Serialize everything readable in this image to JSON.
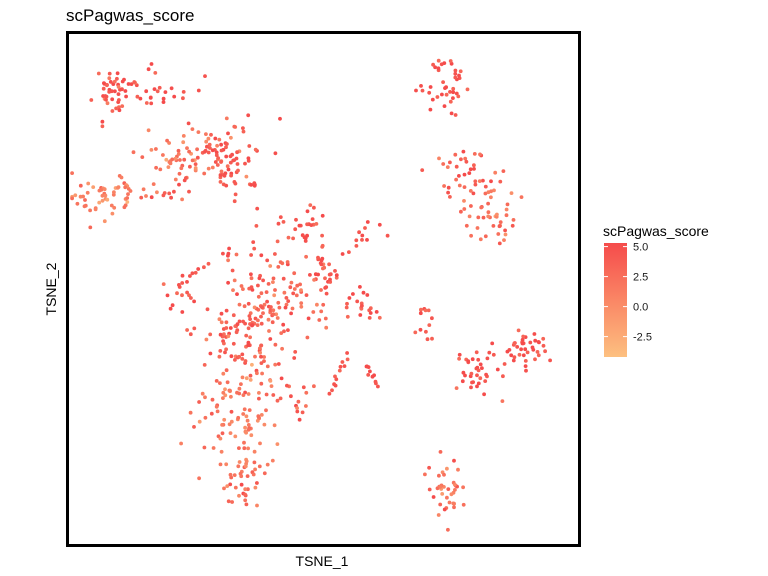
{
  "chart_data": {
    "type": "scatter",
    "title": "scPagwas_score",
    "xlabel": "TSNE_1",
    "ylabel": "TSNE_2",
    "xlim": [
      0,
      100
    ],
    "ylim": [
      0,
      100
    ],
    "grid": false,
    "axis_ticks": false,
    "legend": {
      "title": "scPagwas_score",
      "placement": "right",
      "ticks": [
        "5.0",
        "2.5",
        "0.0",
        "-2.5"
      ],
      "tick_values": [
        5.0,
        2.5,
        0.0,
        -2.5
      ],
      "range": [
        -4.2,
        5.3
      ],
      "colors": {
        "high": "#f54b4b",
        "low": "#fdc080"
      }
    },
    "clusters": [
      {
        "cx": 8.1,
        "cy": 89.0,
        "sx": 2.0,
        "sy": 2.3,
        "n": 45,
        "score": 4.6
      },
      {
        "cx": 17.4,
        "cy": 88.5,
        "sx": 4.0,
        "sy": 2.0,
        "n": 25,
        "score": 4.4
      },
      {
        "cx": 7.5,
        "cy": 68.0,
        "sx": 4.0,
        "sy": 2.2,
        "n": 55,
        "score": 0.8
      },
      {
        "cx": 24.0,
        "cy": 76.0,
        "sx": 4.5,
        "sy": 2.8,
        "n": 60,
        "score": 1.6
      },
      {
        "cx": 32.5,
        "cy": 74.5,
        "sx": 3.0,
        "sy": 2.8,
        "n": 45,
        "score": 4.2
      },
      {
        "cx": 30.0,
        "cy": 80.0,
        "sx": 3.5,
        "sy": 2.5,
        "n": 20,
        "score": 4.0
      },
      {
        "cx": 18.0,
        "cy": 68.0,
        "sx": 2.5,
        "sy": 1.5,
        "n": 8,
        "score": 3.8
      },
      {
        "cx": 46.0,
        "cy": 62.7,
        "sx": 2.4,
        "sy": 1.6,
        "n": 25,
        "score": 4.6
      },
      {
        "cx": 59.5,
        "cy": 60.5,
        "sx": 1.6,
        "sy": 1.0,
        "n": 5,
        "score": 4.7
      },
      {
        "cx": 41.0,
        "cy": 48.5,
        "sx": 5.2,
        "sy": 5.0,
        "n": 95,
        "score": 3.2
      },
      {
        "cx": 34.0,
        "cy": 40.0,
        "sx": 4.0,
        "sy": 5.5,
        "n": 110,
        "score": 3.4
      },
      {
        "cx": 32.0,
        "cy": 25.5,
        "sx": 4.0,
        "sy": 5.0,
        "n": 85,
        "score": 1.2
      },
      {
        "cx": 34.5,
        "cy": 12.5,
        "sx": 2.2,
        "sy": 3.2,
        "n": 40,
        "score": 2.2
      },
      {
        "cx": 50.5,
        "cy": 53.5,
        "sx": 1.5,
        "sy": 2.5,
        "n": 25,
        "score": 4.6
      },
      {
        "cx": 57.5,
        "cy": 47.0,
        "sx": 1.8,
        "sy": 2.2,
        "n": 20,
        "score": 4.7
      },
      {
        "cx": 44.5,
        "cy": 28.0,
        "sx": 2.5,
        "sy": 2.2,
        "n": 15,
        "score": 3.8
      },
      {
        "cx": 21.5,
        "cy": 49.5,
        "sx": 1.3,
        "sy": 1.5,
        "n": 12,
        "score": 4.6
      },
      {
        "cx": 30.5,
        "cy": 57.5,
        "sx": 0.6,
        "sy": 0.8,
        "n": 4,
        "score": 4.8
      },
      {
        "cx": 74.0,
        "cy": 90.0,
        "sx": 2.4,
        "sy": 2.8,
        "n": 40,
        "score": 4.6
      },
      {
        "cx": 78.7,
        "cy": 72.5,
        "sx": 3.3,
        "sy": 3.0,
        "n": 40,
        "score": 3.2
      },
      {
        "cx": 84.0,
        "cy": 64.0,
        "sx": 3.2,
        "sy": 3.4,
        "n": 40,
        "score": 2.0
      },
      {
        "cx": 89.7,
        "cy": 38.5,
        "sx": 2.2,
        "sy": 2.2,
        "n": 38,
        "score": 4.7
      },
      {
        "cx": 80.5,
        "cy": 33.5,
        "sx": 2.3,
        "sy": 2.5,
        "n": 38,
        "score": 4.6
      },
      {
        "cx": 74.0,
        "cy": 10.5,
        "sx": 1.8,
        "sy": 3.0,
        "n": 38,
        "score": 2.2
      },
      {
        "cx": 70.0,
        "cy": 42.0,
        "sx": 1.6,
        "sy": 2.2,
        "n": 12,
        "score": 4.8
      }
    ],
    "strands": [
      {
        "from": [
          21.8,
          50.5
        ],
        "to": [
          26.0,
          54.5
        ],
        "n": 8,
        "score": 4.7
      },
      {
        "from": [
          51.3,
          29.5
        ],
        "to": [
          54.7,
          37.2
        ],
        "n": 12,
        "score": 4.2
      },
      {
        "from": [
          58.5,
          35.0
        ],
        "to": [
          60.5,
          31.0
        ],
        "n": 10,
        "score": 4.8
      },
      {
        "from": [
          55.0,
          57.5
        ],
        "to": [
          59.0,
          63.0
        ],
        "n": 6,
        "score": 4.6
      },
      {
        "from": [
          35.5,
          50.5
        ],
        "to": [
          36.5,
          65.5
        ],
        "n": 6,
        "score": 4.6
      },
      {
        "from": [
          20.0,
          68.0
        ],
        "to": [
          27.0,
          78.0
        ],
        "n": 10,
        "score": 4.5
      }
    ]
  }
}
